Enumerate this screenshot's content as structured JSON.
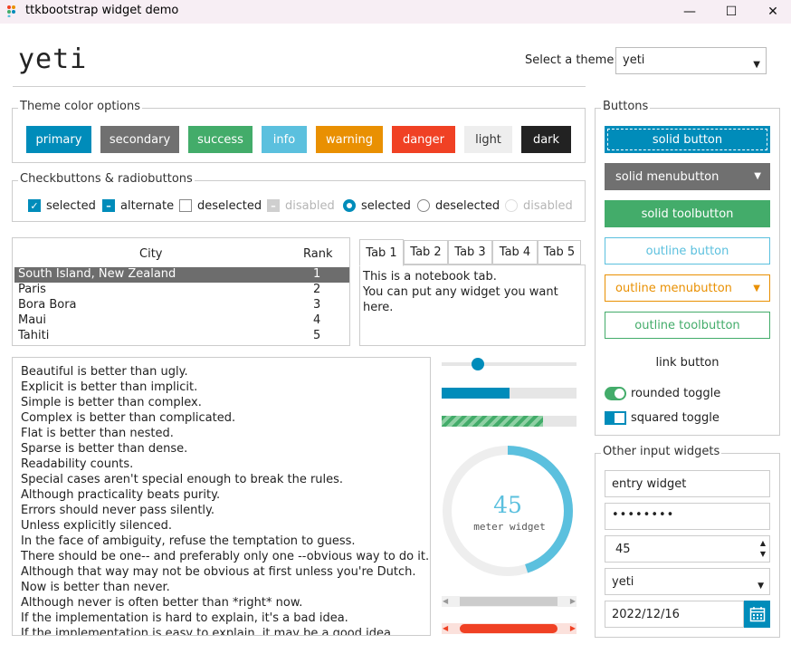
{
  "window": {
    "title": "ttkbootstrap widget demo",
    "minimize": "—",
    "maximize": "☐",
    "close": "✕"
  },
  "header": {
    "theme_name": "yeti",
    "theme_label": "Select a theme:",
    "theme_value": "yeti"
  },
  "colors": {
    "primary": "#008cba",
    "secondary": "#707070",
    "success": "#43ac6a",
    "info": "#5bc0de",
    "warning": "#e99002",
    "danger": "#f04124",
    "light": "#eeeeee",
    "dark": "#222222"
  },
  "color_options": {
    "title": "Theme color options",
    "buttons": [
      "primary",
      "secondary",
      "success",
      "info",
      "warning",
      "danger",
      "light",
      "dark"
    ]
  },
  "checks": {
    "title": "Checkbuttons & radiobuttons",
    "items": [
      "selected",
      "alternate",
      "deselected",
      "disabled",
      "selected",
      "deselected",
      "disabled"
    ]
  },
  "table": {
    "headers": [
      "City",
      "Rank"
    ],
    "rows": [
      [
        "South Island, New Zealand",
        "1"
      ],
      [
        "Paris",
        "2"
      ],
      [
        "Bora Bora",
        "3"
      ],
      [
        "Maui",
        "4"
      ],
      [
        "Tahiti",
        "5"
      ]
    ]
  },
  "notebook": {
    "tabs": [
      "Tab 1",
      "Tab 2",
      "Tab 3",
      "Tab 4",
      "Tab 5"
    ],
    "text_line1": "This is a notebook tab.",
    "text_line2": "You can put any widget you want here."
  },
  "zen": [
    "Beautiful is better than ugly.",
    "Explicit is better than implicit.",
    "Simple is better than complex.",
    "Complex is better than complicated.",
    "Flat is better than nested.",
    "Sparse is better than dense.",
    "Readability counts.",
    "Special cases aren't special enough to break the rules.",
    "Although practicality beats purity.",
    "Errors should never pass silently.",
    "Unless explicitly silenced.",
    "In the face of ambiguity, refuse the temptation to guess.",
    "There should be one-- and preferably only one --obvious way to do it.",
    "Although that way may not be obvious at first unless you're Dutch.",
    "Now is better than never.",
    "Although never is often better than *right* now.",
    "If the implementation is hard to explain, it's a bad idea.",
    "If the implementation is easy to explain, it may be a good idea."
  ],
  "controls": {
    "scale_value": 0.27,
    "progress1": 0.5,
    "progress2": 0.75,
    "meter_value": "45",
    "meter_fraction": 0.45,
    "meter_label": "meter widget"
  },
  "buttons": {
    "title": "Buttons",
    "solid_button": "solid button",
    "solid_menubutton": "solid menubutton",
    "solid_toolbutton": "solid toolbutton",
    "outline_button": "outline button",
    "outline_menubutton": "outline menubutton",
    "outline_toolbutton": "outline toolbutton",
    "link_button": "link button",
    "rounded_toggle": "rounded toggle",
    "squared_toggle": "squared toggle"
  },
  "inputs": {
    "title": "Other input widgets",
    "entry": "entry widget",
    "password": "••••••••",
    "spinbox": "45",
    "combobox": "yeti",
    "date": "2022/12/16"
  }
}
